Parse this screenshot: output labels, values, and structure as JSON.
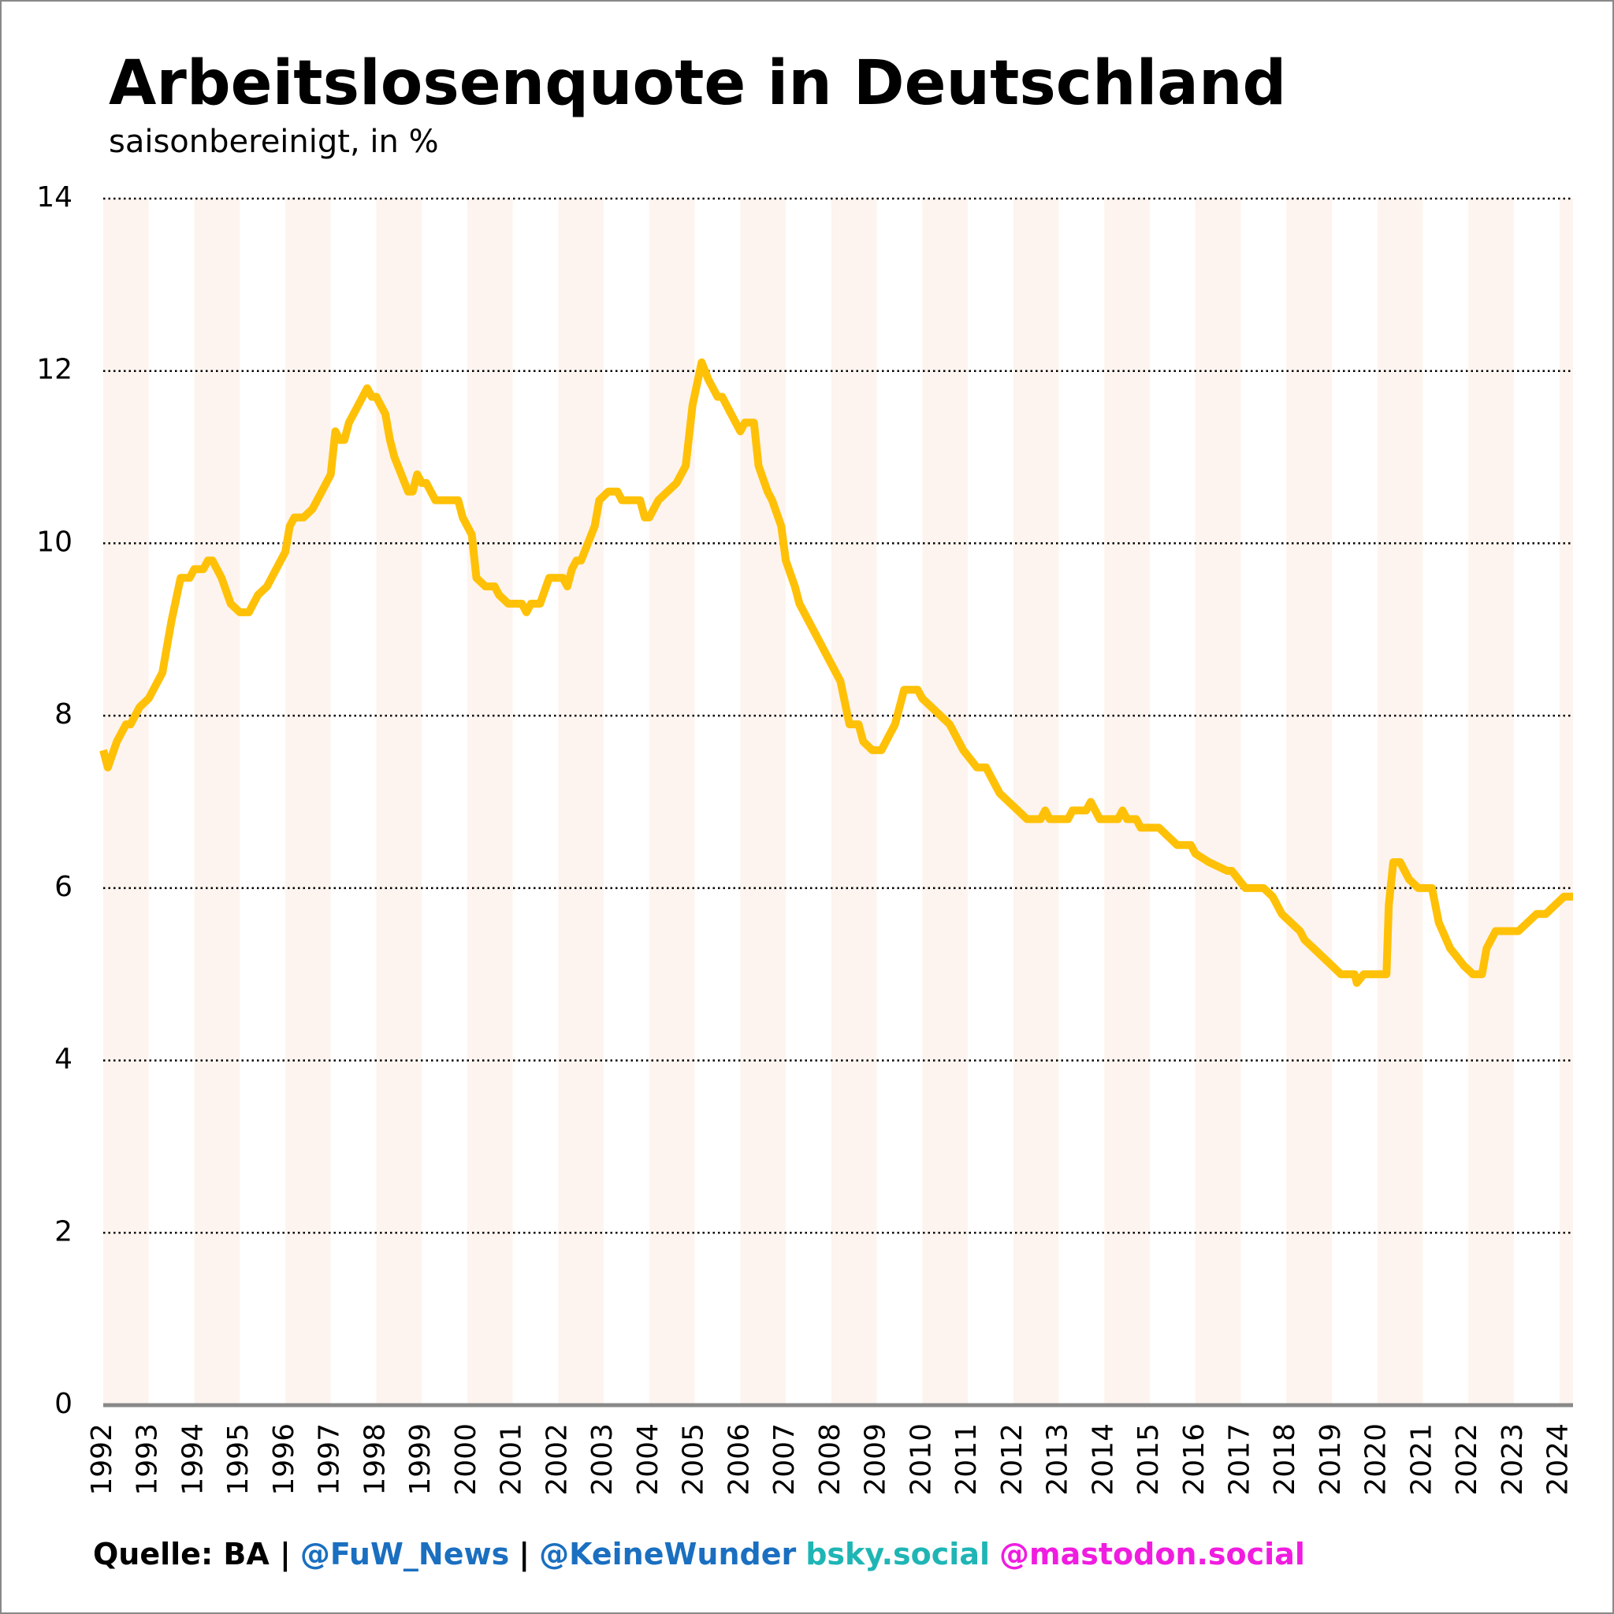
{
  "chart_data": {
    "type": "line",
    "title": "Arbeitslosenquote in Deutschland",
    "subtitle": "saisonbereinigt, in %",
    "color": "#ffc107",
    "band_color": "#fdf4ef",
    "grid": true,
    "xlim": [
      1992,
      2024.3
    ],
    "xticks": [
      1992,
      1993,
      1994,
      1995,
      1996,
      1997,
      1998,
      1999,
      2000,
      2001,
      2002,
      2003,
      2004,
      2005,
      2006,
      2007,
      2008,
      2009,
      2010,
      2011,
      2012,
      2013,
      2014,
      2015,
      2016,
      2017,
      2018,
      2019,
      2020,
      2021,
      2022,
      2023,
      2024
    ],
    "ylim": [
      0,
      14
    ],
    "yticks": [
      0,
      2,
      4,
      6,
      8,
      10,
      12,
      14
    ],
    "x": [
      1992.0,
      1992.1,
      1992.3,
      1992.5,
      1992.6,
      1992.8,
      1993.0,
      1993.3,
      1993.4,
      1993.5,
      1993.7,
      1993.9,
      1994.0,
      1994.2,
      1994.3,
      1994.4,
      1994.5,
      1994.6,
      1994.8,
      1995.0,
      1995.2,
      1995.4,
      1995.6,
      1995.8,
      1996.0,
      1996.1,
      1996.2,
      1996.4,
      1996.6,
      1996.8,
      1997.0,
      1997.1,
      1997.2,
      1997.3,
      1997.4,
      1997.5,
      1997.8,
      1997.9,
      1998.0,
      1998.2,
      1998.3,
      1998.4,
      1998.7,
      1998.8,
      1998.9,
      1999.0,
      1999.1,
      1999.3,
      1999.8,
      1999.9,
      2000.1,
      2000.2,
      2000.4,
      2000.6,
      2000.7,
      2000.9,
      2001.2,
      2001.3,
      2001.4,
      2001.6,
      2001.8,
      2002.1,
      2002.2,
      2002.3,
      2002.4,
      2002.5,
      2002.8,
      2002.9,
      2003.1,
      2003.3,
      2003.4,
      2003.8,
      2003.9,
      2004.0,
      2004.2,
      2004.4,
      2004.6,
      2004.8,
      2004.95,
      2005.15,
      2005.3,
      2005.5,
      2005.6,
      2005.8,
      2006.0,
      2006.1,
      2006.3,
      2006.4,
      2006.6,
      2006.7,
      2006.9,
      2007.0,
      2007.2,
      2007.3,
      2007.7,
      2008.0,
      2008.2,
      2008.4,
      2008.6,
      2008.7,
      2008.9,
      2009.1,
      2009.3,
      2009.4,
      2009.6,
      2009.7,
      2009.9,
      2010.0,
      2010.2,
      2010.4,
      2010.6,
      2010.8,
      2010.9,
      2011.2,
      2011.4,
      2011.5,
      2011.7,
      2011.9,
      2012.1,
      2012.3,
      2012.6,
      2012.7,
      2012.8,
      2013.2,
      2013.3,
      2013.6,
      2013.7,
      2013.9,
      2014.3,
      2014.4,
      2014.5,
      2014.7,
      2014.8,
      2015.2,
      2015.4,
      2015.6,
      2015.9,
      2016.0,
      2016.3,
      2016.7,
      2016.8,
      2017.1,
      2017.5,
      2017.7,
      2017.9,
      2018.1,
      2018.3,
      2018.4,
      2018.6,
      2018.8,
      2019.0,
      2019.2,
      2019.5,
      2019.55,
      2019.7,
      2020.2,
      2020.25,
      2020.35,
      2020.5,
      2020.7,
      2020.9,
      2021.2,
      2021.35,
      2021.6,
      2021.75,
      2021.9,
      2022.1,
      2022.3,
      2022.4,
      2022.6,
      2023.1,
      2023.3,
      2023.5,
      2023.7,
      2023.9,
      2024.1,
      2024.3
    ],
    "values": [
      7.6,
      7.4,
      7.7,
      7.9,
      7.9,
      8.1,
      8.2,
      8.5,
      8.8,
      9.1,
      9.6,
      9.6,
      9.7,
      9.7,
      9.8,
      9.8,
      9.7,
      9.6,
      9.3,
      9.2,
      9.2,
      9.4,
      9.5,
      9.7,
      9.9,
      10.2,
      10.3,
      10.3,
      10.4,
      10.6,
      10.8,
      11.3,
      11.2,
      11.2,
      11.4,
      11.5,
      11.8,
      11.7,
      11.7,
      11.5,
      11.2,
      11.0,
      10.6,
      10.6,
      10.8,
      10.7,
      10.7,
      10.5,
      10.5,
      10.3,
      10.1,
      9.6,
      9.5,
      9.5,
      9.4,
      9.3,
      9.3,
      9.2,
      9.3,
      9.3,
      9.6,
      9.6,
      9.5,
      9.7,
      9.8,
      9.8,
      10.2,
      10.5,
      10.6,
      10.6,
      10.5,
      10.5,
      10.3,
      10.3,
      10.5,
      10.6,
      10.7,
      10.9,
      11.6,
      12.1,
      11.9,
      11.7,
      11.7,
      11.5,
      11.3,
      11.4,
      11.4,
      10.9,
      10.6,
      10.5,
      10.2,
      9.8,
      9.5,
      9.3,
      8.9,
      8.6,
      8.4,
      7.9,
      7.9,
      7.7,
      7.6,
      7.6,
      7.8,
      7.9,
      8.3,
      8.3,
      8.3,
      8.2,
      8.1,
      8.0,
      7.9,
      7.7,
      7.6,
      7.4,
      7.4,
      7.3,
      7.1,
      7.0,
      6.9,
      6.8,
      6.8,
      6.9,
      6.8,
      6.8,
      6.9,
      6.9,
      7.0,
      6.8,
      6.8,
      6.9,
      6.8,
      6.8,
      6.7,
      6.7,
      6.6,
      6.5,
      6.5,
      6.4,
      6.3,
      6.2,
      6.2,
      6.0,
      6.0,
      5.9,
      5.7,
      5.6,
      5.5,
      5.4,
      5.3,
      5.2,
      5.1,
      5.0,
      5.0,
      4.9,
      5.0,
      5.0,
      5.8,
      6.3,
      6.3,
      6.1,
      6.0,
      6.0,
      5.6,
      5.3,
      5.2,
      5.1,
      5.0,
      5.0,
      5.3,
      5.5,
      5.5,
      5.6,
      5.7,
      5.7,
      5.8,
      5.9,
      5.9
    ],
    "footer": [
      {
        "text": "Quelle: BA |",
        "color": "#000000"
      },
      {
        "text": "@FuW_News",
        "color": "#1a6fc0"
      },
      {
        "text": "|",
        "color": "#000000"
      },
      {
        "text": "@KeineWunder",
        "color": "#1a6fc0"
      },
      {
        "text": "bsky.social",
        "color": "#1fb5b5"
      },
      {
        "text": "@mastodon.social",
        "color": "#f01ce0"
      }
    ]
  }
}
